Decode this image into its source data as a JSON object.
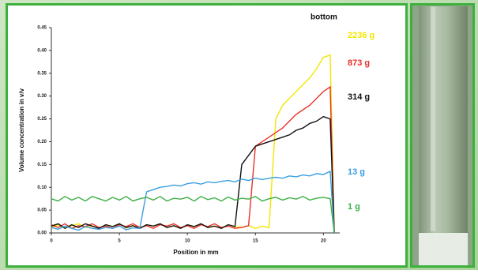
{
  "chart_data": {
    "type": "line",
    "x_label": "Position in mm",
    "y_label": "Volume concentration in v/v",
    "annotation": "bottom",
    "x": [
      0,
      0.5,
      1,
      1.5,
      2,
      2.5,
      3,
      3.5,
      4,
      4.5,
      5,
      5.5,
      6,
      6.5,
      7,
      7.5,
      8,
      8.5,
      9,
      9.5,
      10,
      10.5,
      11,
      11.5,
      12,
      12.5,
      13,
      13.5,
      14,
      14.5,
      15,
      15.5,
      16,
      16.5,
      17,
      17.5,
      18,
      18.5,
      19,
      19.5,
      20,
      20.5,
      20.8
    ],
    "series": [
      {
        "name": "2236 g",
        "color": "#f2e600",
        "values": [
          0.012,
          0.018,
          0.01,
          0.016,
          0.02,
          0.012,
          0.015,
          0.01,
          0.018,
          0.014,
          0.02,
          0.011,
          0.016,
          0.01,
          0.018,
          0.015,
          0.02,
          0.012,
          0.016,
          0.01,
          0.018,
          0.014,
          0.02,
          0.012,
          0.015,
          0.01,
          0.018,
          0.014,
          0.012,
          0.016,
          0.01,
          0.015,
          0.012,
          0.25,
          0.28,
          0.295,
          0.31,
          0.325,
          0.34,
          0.36,
          0.385,
          0.39,
          0
        ]
      },
      {
        "name": "873 g",
        "color": "#e8332a",
        "values": [
          0.018,
          0.012,
          0.02,
          0.01,
          0.016,
          0.014,
          0.02,
          0.012,
          0.015,
          0.01,
          0.018,
          0.014,
          0.02,
          0.012,
          0.016,
          0.01,
          0.018,
          0.015,
          0.02,
          0.012,
          0.016,
          0.01,
          0.018,
          0.014,
          0.02,
          0.012,
          0.015,
          0.01,
          0.012,
          0.016,
          0.19,
          0.2,
          0.21,
          0.22,
          0.23,
          0.245,
          0.26,
          0.27,
          0.28,
          0.295,
          0.31,
          0.32,
          0
        ]
      },
      {
        "name": "314 g",
        "color": "#111111",
        "values": [
          0.015,
          0.02,
          0.01,
          0.018,
          0.012,
          0.02,
          0.015,
          0.01,
          0.018,
          0.014,
          0.02,
          0.012,
          0.016,
          0.01,
          0.018,
          0.015,
          0.02,
          0.012,
          0.016,
          0.01,
          0.018,
          0.014,
          0.02,
          0.012,
          0.015,
          0.01,
          0.018,
          0.014,
          0.15,
          0.17,
          0.19,
          0.195,
          0.2,
          0.205,
          0.21,
          0.215,
          0.225,
          0.23,
          0.24,
          0.245,
          0.255,
          0.25,
          0
        ]
      },
      {
        "name": "13 g",
        "color": "#3a9fe0",
        "values": [
          0.012,
          0.008,
          0.015,
          0.01,
          0.006,
          0.014,
          0.01,
          0.008,
          0.012,
          0.01,
          0.015,
          0.007,
          0.011,
          0.01,
          0.09,
          0.095,
          0.1,
          0.102,
          0.105,
          0.103,
          0.108,
          0.11,
          0.107,
          0.112,
          0.11,
          0.113,
          0.115,
          0.112,
          0.118,
          0.115,
          0.12,
          0.117,
          0.12,
          0.122,
          0.12,
          0.125,
          0.123,
          0.127,
          0.125,
          0.13,
          0.128,
          0.135,
          0
        ]
      },
      {
        "name": "1 g",
        "color": "#3cb043",
        "values": [
          0.075,
          0.07,
          0.08,
          0.072,
          0.078,
          0.07,
          0.08,
          0.075,
          0.07,
          0.078,
          0.072,
          0.08,
          0.07,
          0.075,
          0.078,
          0.072,
          0.08,
          0.07,
          0.076,
          0.074,
          0.078,
          0.07,
          0.08,
          0.073,
          0.077,
          0.07,
          0.079,
          0.072,
          0.076,
          0.074,
          0.08,
          0.07,
          0.075,
          0.078,
          0.072,
          0.077,
          0.074,
          0.08,
          0.072,
          0.076,
          0.078,
          0.075,
          0
        ]
      }
    ],
    "xlim": [
      0,
      21.2
    ],
    "xticks": [
      0,
      5,
      10,
      15,
      20
    ],
    "ylim": [
      0,
      0.45
    ],
    "yticks": [
      {
        "value": 0,
        "label": "0.00"
      },
      0.05,
      {
        "value": 0.1,
        "label": "0.10"
      },
      0.15,
      {
        "value": 0.2,
        "label": "0.20"
      },
      0.25,
      {
        "value": 0.3,
        "label": "0.30"
      },
      0.35,
      {
        "value": 0.4,
        "label": "0.40"
      },
      0.45
    ],
    "grid": false
  }
}
